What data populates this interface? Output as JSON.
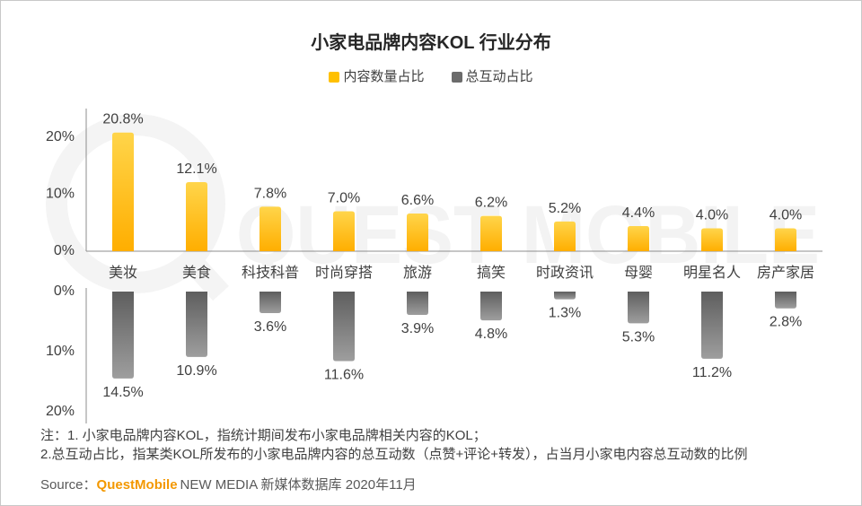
{
  "watermark": "QUEST MOBILE",
  "chart_data": {
    "type": "bar",
    "title": "小家电品牌内容KOL 行业分布",
    "categories": [
      "美妆",
      "美食",
      "科技科普",
      "时尚穿搭",
      "旅游",
      "搞笑",
      "时政资讯",
      "母婴",
      "明星名人",
      "房产家居"
    ],
    "series": [
      {
        "name": "内容数量占比",
        "color": "#FFC000",
        "orientation": "upward",
        "values": [
          20.8,
          12.1,
          7.8,
          7.0,
          6.6,
          6.2,
          5.2,
          4.4,
          4.0,
          4.0
        ]
      },
      {
        "name": "总互动占比",
        "color": "#6B6B6B",
        "orientation": "downward",
        "values": [
          14.5,
          10.9,
          3.6,
          11.6,
          3.9,
          4.8,
          1.3,
          5.3,
          11.2,
          2.8
        ]
      }
    ],
    "value_unit": "%",
    "upper_axis": {
      "ylim": [
        0,
        25
      ],
      "ticks": [
        0,
        10,
        20
      ]
    },
    "lower_axis": {
      "ylim": [
        0,
        22
      ],
      "ticks": [
        0,
        10,
        20
      ]
    },
    "legend_position": "top-center",
    "grid": false
  },
  "notes": {
    "line1": "注：1. 小家电品牌内容KOL，指统计期间发布小家电品牌相关内容的KOL；",
    "line2": "2.总互动占比，指某类KOL所发布的小家电品牌内容的总互动数（点赞+评论+转发），占当月小家电内容总互动数的比例"
  },
  "source": {
    "label": "Source：",
    "brand": "QuestMobile",
    "text": "NEW MEDIA 新媒体数据库 2020年11月"
  }
}
